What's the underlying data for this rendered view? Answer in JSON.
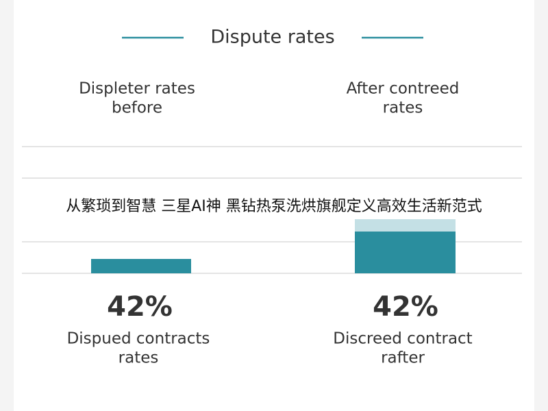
{
  "header": {
    "title": "Dispute rates"
  },
  "columns": [
    {
      "heading": [
        "Displeter rates",
        "before"
      ],
      "stat": "42%",
      "caption": [
        "Dispued contracts",
        "rates"
      ]
    },
    {
      "heading": [
        "After contreed",
        "rates"
      ],
      "stat": "42%",
      "caption": [
        "Discreed contract",
        "rafter"
      ]
    }
  ],
  "overlay": {
    "caption": "从繁琐到智慧 三星AI神 黑钻热泵洗烘旗舰定义高效生活新范式"
  }
}
